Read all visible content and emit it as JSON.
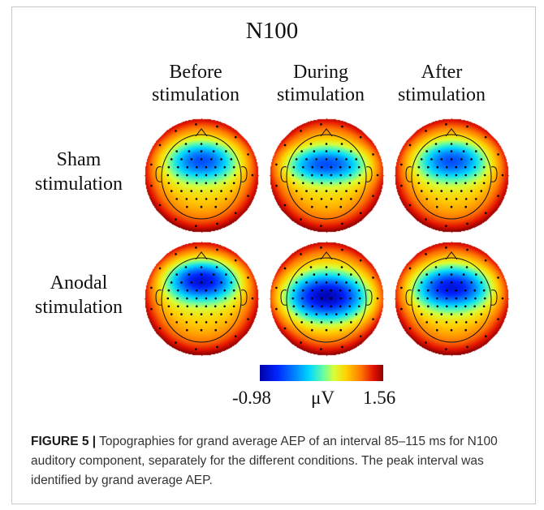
{
  "figure": {
    "title": "N100",
    "columns": [
      {
        "line1": "Before",
        "line2": "stimulation"
      },
      {
        "line1": "During",
        "line2": "stimulation"
      },
      {
        "line1": "After",
        "line2": "stimulation"
      }
    ],
    "rows": [
      {
        "line1": "Sham",
        "line2": "stimulation"
      },
      {
        "line1": "Anodal",
        "line2": "stimulation"
      }
    ],
    "colorbar": {
      "min_label": "-0.98",
      "unit_label": "μV",
      "max_label": "1.56",
      "min": -0.98,
      "max": 1.56
    }
  },
  "maps": [
    {
      "row": "Sham",
      "column": "Before",
      "min_center": [
        0,
        -0.26
      ],
      "min_level": 0.2,
      "min_spread": [
        0.62,
        0.34
      ]
    },
    {
      "row": "Sham",
      "column": "During",
      "min_center": [
        0,
        -0.2
      ],
      "min_level": 0.2,
      "min_spread": [
        0.72,
        0.3
      ]
    },
    {
      "row": "Sham",
      "column": "After",
      "min_center": [
        0,
        -0.26
      ],
      "min_level": 0.2,
      "min_spread": [
        0.62,
        0.34
      ]
    },
    {
      "row": "Anodal",
      "column": "Before",
      "min_center": [
        0,
        -0.32
      ],
      "min_level": 0.06,
      "min_spread": [
        0.62,
        0.34
      ]
    },
    {
      "row": "Anodal",
      "column": "During",
      "min_center": [
        0,
        -0.04
      ],
      "min_level": 0.02,
      "min_spread": [
        0.72,
        0.4
      ]
    },
    {
      "row": "Anodal",
      "column": "After",
      "min_center": [
        0,
        -0.2
      ],
      "min_level": 0.08,
      "min_spread": [
        0.66,
        0.36
      ]
    }
  ],
  "caption": {
    "label": "FIGURE 5 |",
    "text": " Topographies for grand average AEP of an interval 85–115 ms for N100 auditory component, separately for the different conditions. The peak interval was identified by grand average AEP."
  }
}
